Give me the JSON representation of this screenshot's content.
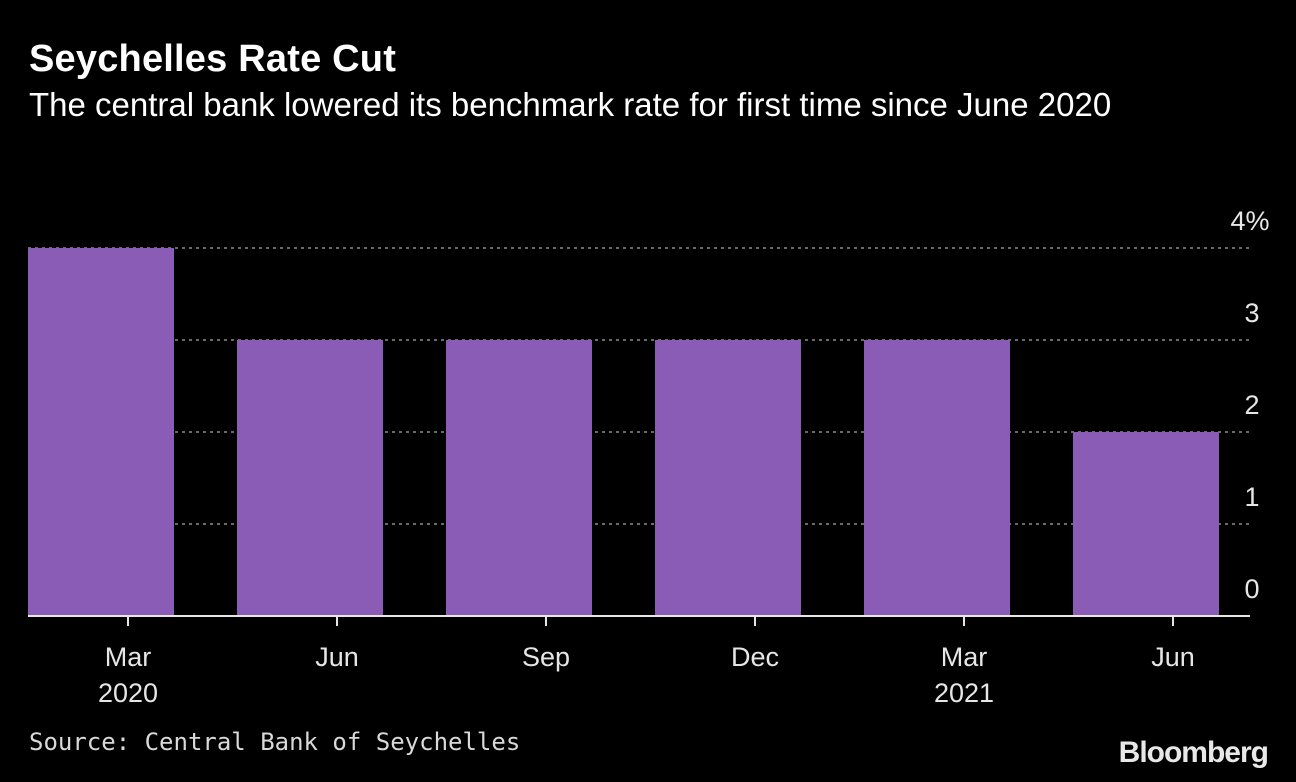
{
  "chart_data": {
    "type": "bar",
    "title": "Seychelles Rate Cut",
    "subtitle": "The central bank lowered its benchmark rate for first time since June 2020",
    "categories": [
      "Mar 2020",
      "Jun",
      "Sep",
      "Dec",
      "Mar 2021",
      "Jun"
    ],
    "x_tick_labels": [
      {
        "line1": "Mar",
        "line2": "2020"
      },
      {
        "line1": "Jun",
        "line2": ""
      },
      {
        "line1": "Sep",
        "line2": ""
      },
      {
        "line1": "Dec",
        "line2": ""
      },
      {
        "line1": "Mar",
        "line2": "2021"
      },
      {
        "line1": "Jun",
        "line2": ""
      }
    ],
    "values": [
      4,
      3,
      3,
      3,
      3,
      2
    ],
    "ylim": [
      0,
      4
    ],
    "y_ticks": [
      0,
      1,
      2,
      3,
      4
    ],
    "y_tick_labels": [
      "0",
      "1",
      "2",
      "3",
      "4%"
    ],
    "xlabel": "",
    "ylabel": "",
    "y_axis_side": "right",
    "grid": true,
    "bar_color": "#8a5cb5"
  },
  "source": "Source: Central Bank of Seychelles",
  "brand": "Bloomberg",
  "colors": {
    "background": "#000000",
    "bar": "#8a5cb5",
    "grid": "#8c8c8c",
    "axis": "#e6e6e6",
    "text": "#ffffff"
  }
}
